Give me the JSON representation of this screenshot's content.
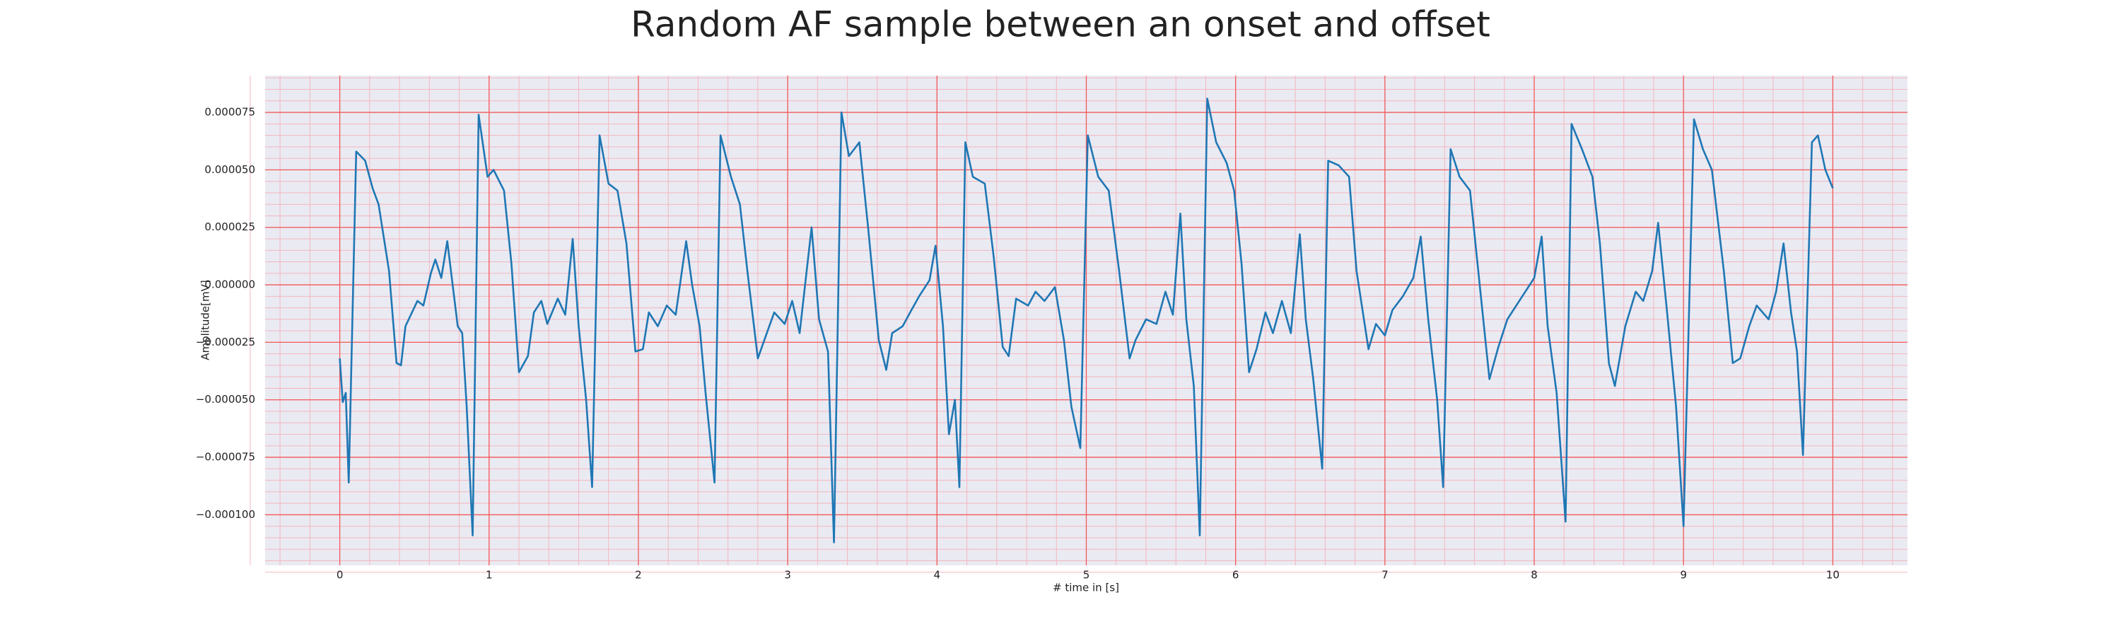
{
  "chart_data": {
    "type": "line",
    "title": "Random AF sample between an onset and offset",
    "x_label": "# time in [s]",
    "y_label": "Amplitude[mV]",
    "color": "#1f77b4",
    "grid": true,
    "minor_grid": true,
    "xlim": [
      -0.5,
      10.5
    ],
    "xticks": [
      0,
      1,
      2,
      3,
      4,
      5,
      6,
      7,
      8,
      9,
      10
    ],
    "ylim": [
      -0.000122,
      9.1e-05
    ],
    "yticks": [
      {
        "value": -0.0001,
        "label": "−0.000100"
      },
      {
        "value": -7.5e-05,
        "label": "−0.000075"
      },
      {
        "value": -5e-05,
        "label": "−0.000050"
      },
      {
        "value": -2.5e-05,
        "label": "−0.000025"
      },
      {
        "value": 0,
        "label": "0.000000"
      },
      2.5e-05,
      {
        "value": 5e-05,
        "label": "0.000050"
      },
      7.5e-05
    ],
    "x": [
      0,
      0.02,
      0.04,
      0.06,
      0.11,
      0.17,
      0.22,
      0.26,
      0.33,
      0.38,
      0.41,
      0.44,
      0.52,
      0.56,
      0.61,
      0.64,
      0.68,
      0.72,
      0.79,
      0.82,
      0.85,
      0.89,
      0.93,
      0.99,
      1.03,
      1.1,
      1.15,
      1.2,
      1.26,
      1.3,
      1.35,
      1.39,
      1.46,
      1.51,
      1.56,
      1.6,
      1.65,
      1.69,
      1.74,
      1.8,
      1.86,
      1.92,
      1.98,
      2.03,
      2.07,
      2.13,
      2.19,
      2.25,
      2.32,
      2.36,
      2.41,
      2.45,
      2.51,
      2.55,
      2.62,
      2.68,
      2.73,
      2.8,
      2.86,
      2.91,
      2.98,
      3.03,
      3.08,
      3.16,
      3.21,
      3.27,
      3.31,
      3.36,
      3.41,
      3.48,
      3.54,
      3.61,
      3.66,
      3.7,
      3.77,
      3.82,
      3.88,
      3.95,
      3.99,
      4.04,
      4.08,
      4.12,
      4.15,
      4.19,
      4.24,
      4.32,
      4.38,
      4.44,
      4.48,
      4.53,
      4.61,
      4.66,
      4.72,
      4.79,
      4.85,
      4.9,
      4.96,
      5.01,
      5.08,
      5.15,
      5.22,
      5.29,
      5.33,
      5.4,
      5.47,
      5.53,
      5.58,
      5.63,
      5.67,
      5.72,
      5.76,
      5.81,
      5.87,
      5.94,
      5.99,
      6.04,
      6.09,
      6.14,
      6.2,
      6.25,
      6.31,
      6.37,
      6.43,
      6.47,
      6.52,
      6.58,
      6.62,
      6.69,
      6.76,
      6.81,
      6.89,
      6.94,
      7.0,
      7.05,
      7.12,
      7.19,
      7.24,
      7.29,
      7.35,
      7.39,
      7.44,
      7.5,
      7.57,
      7.63,
      7.7,
      7.76,
      7.82,
      7.88,
      7.94,
      8.0,
      8.05,
      8.09,
      8.15,
      8.21,
      8.25,
      8.32,
      8.39,
      8.44,
      8.5,
      8.54,
      8.61,
      8.68,
      8.73,
      8.79,
      8.83,
      8.89,
      8.95,
      9.0,
      9.07,
      9.13,
      9.19,
      9.27,
      9.33,
      9.38,
      9.44,
      9.49,
      9.57,
      9.62,
      9.67,
      9.72,
      9.76,
      9.8,
      9.86,
      9.9,
      9.95,
      10.0
    ],
    "values": [
      -3.2e-05,
      -5.1e-05,
      -4.7e-05,
      -8.6e-05,
      5.8e-05,
      5.4e-05,
      4.2e-05,
      3.5e-05,
      6e-06,
      -3.4e-05,
      -3.5e-05,
      -1.8e-05,
      -7e-06,
      -9e-06,
      5e-06,
      1.1e-05,
      3e-06,
      1.9e-05,
      -1.8e-05,
      -2.1e-05,
      -5.3e-05,
      -0.000109,
      7.4e-05,
      4.7e-05,
      5e-05,
      4.1e-05,
      9e-06,
      -3.8e-05,
      -3.1e-05,
      -1.2e-05,
      -7e-06,
      -1.7e-05,
      -6e-06,
      -1.3e-05,
      2e-05,
      -1.8e-05,
      -5e-05,
      -8.8e-05,
      6.5e-05,
      4.4e-05,
      4.1e-05,
      1.8e-05,
      -2.9e-05,
      -2.8e-05,
      -1.2e-05,
      -1.8e-05,
      -9e-06,
      -1.3e-05,
      1.9e-05,
      0,
      -1.8e-05,
      -4.7e-05,
      -8.6e-05,
      6.5e-05,
      4.7e-05,
      3.5e-05,
      6e-06,
      -3.2e-05,
      -2.1e-05,
      -1.2e-05,
      -1.7e-05,
      -7e-06,
      -2.1e-05,
      2.5e-05,
      -1.5e-05,
      -2.9e-05,
      -0.000112,
      7.5e-05,
      5.6e-05,
      6.2e-05,
      2.4e-05,
      -2.4e-05,
      -3.7e-05,
      -2.1e-05,
      -1.8e-05,
      -1.2e-05,
      -5e-06,
      2e-06,
      1.7e-05,
      -1.8e-05,
      -6.5e-05,
      -5e-05,
      -8.8e-05,
      6.2e-05,
      4.7e-05,
      4.4e-05,
      1.2e-05,
      -2.7e-05,
      -3.1e-05,
      -6e-06,
      -9e-06,
      -3e-06,
      -7e-06,
      -1e-06,
      -2.4e-05,
      -5.3e-05,
      -7.1e-05,
      6.5e-05,
      4.7e-05,
      4.1e-05,
      6e-06,
      -3.2e-05,
      -2.4e-05,
      -1.5e-05,
      -1.7e-05,
      -3e-06,
      -1.3e-05,
      3.1e-05,
      -1.5e-05,
      -4.4e-05,
      -0.000109,
      8.1e-05,
      6.2e-05,
      5.3e-05,
      4.1e-05,
      9e-06,
      -3.8e-05,
      -2.8e-05,
      -1.2e-05,
      -2.1e-05,
      -7e-06,
      -2.1e-05,
      2.2e-05,
      -1.5e-05,
      -4.1e-05,
      -8e-05,
      5.4e-05,
      5.2e-05,
      4.7e-05,
      6e-06,
      -2.8e-05,
      -1.7e-05,
      -2.2e-05,
      -1.1e-05,
      -5e-06,
      3e-06,
      2.1e-05,
      -1.5e-05,
      -5e-05,
      -8.8e-05,
      5.9e-05,
      4.7e-05,
      4.1e-05,
      3e-06,
      -4.1e-05,
      -2.7e-05,
      -1.5e-05,
      -9e-06,
      -3e-06,
      3e-06,
      2.1e-05,
      -1.8e-05,
      -4.7e-05,
      -0.000103,
      7e-05,
      5.9e-05,
      4.7e-05,
      1.8e-05,
      -3.4e-05,
      -4.4e-05,
      -1.8e-05,
      -3e-06,
      -7e-06,
      6e-06,
      2.7e-05,
      -1.2e-05,
      -5.3e-05,
      -0.000105,
      7.2e-05,
      5.9e-05,
      5e-05,
      6e-06,
      -3.4e-05,
      -3.2e-05,
      -1.8e-05,
      -9e-06,
      -1.5e-05,
      -3e-06,
      1.8e-05,
      -1.2e-05,
      -2.9e-05,
      -7.4e-05,
      6.2e-05,
      6.5e-05,
      5e-05,
      4.2e-05
    ]
  }
}
